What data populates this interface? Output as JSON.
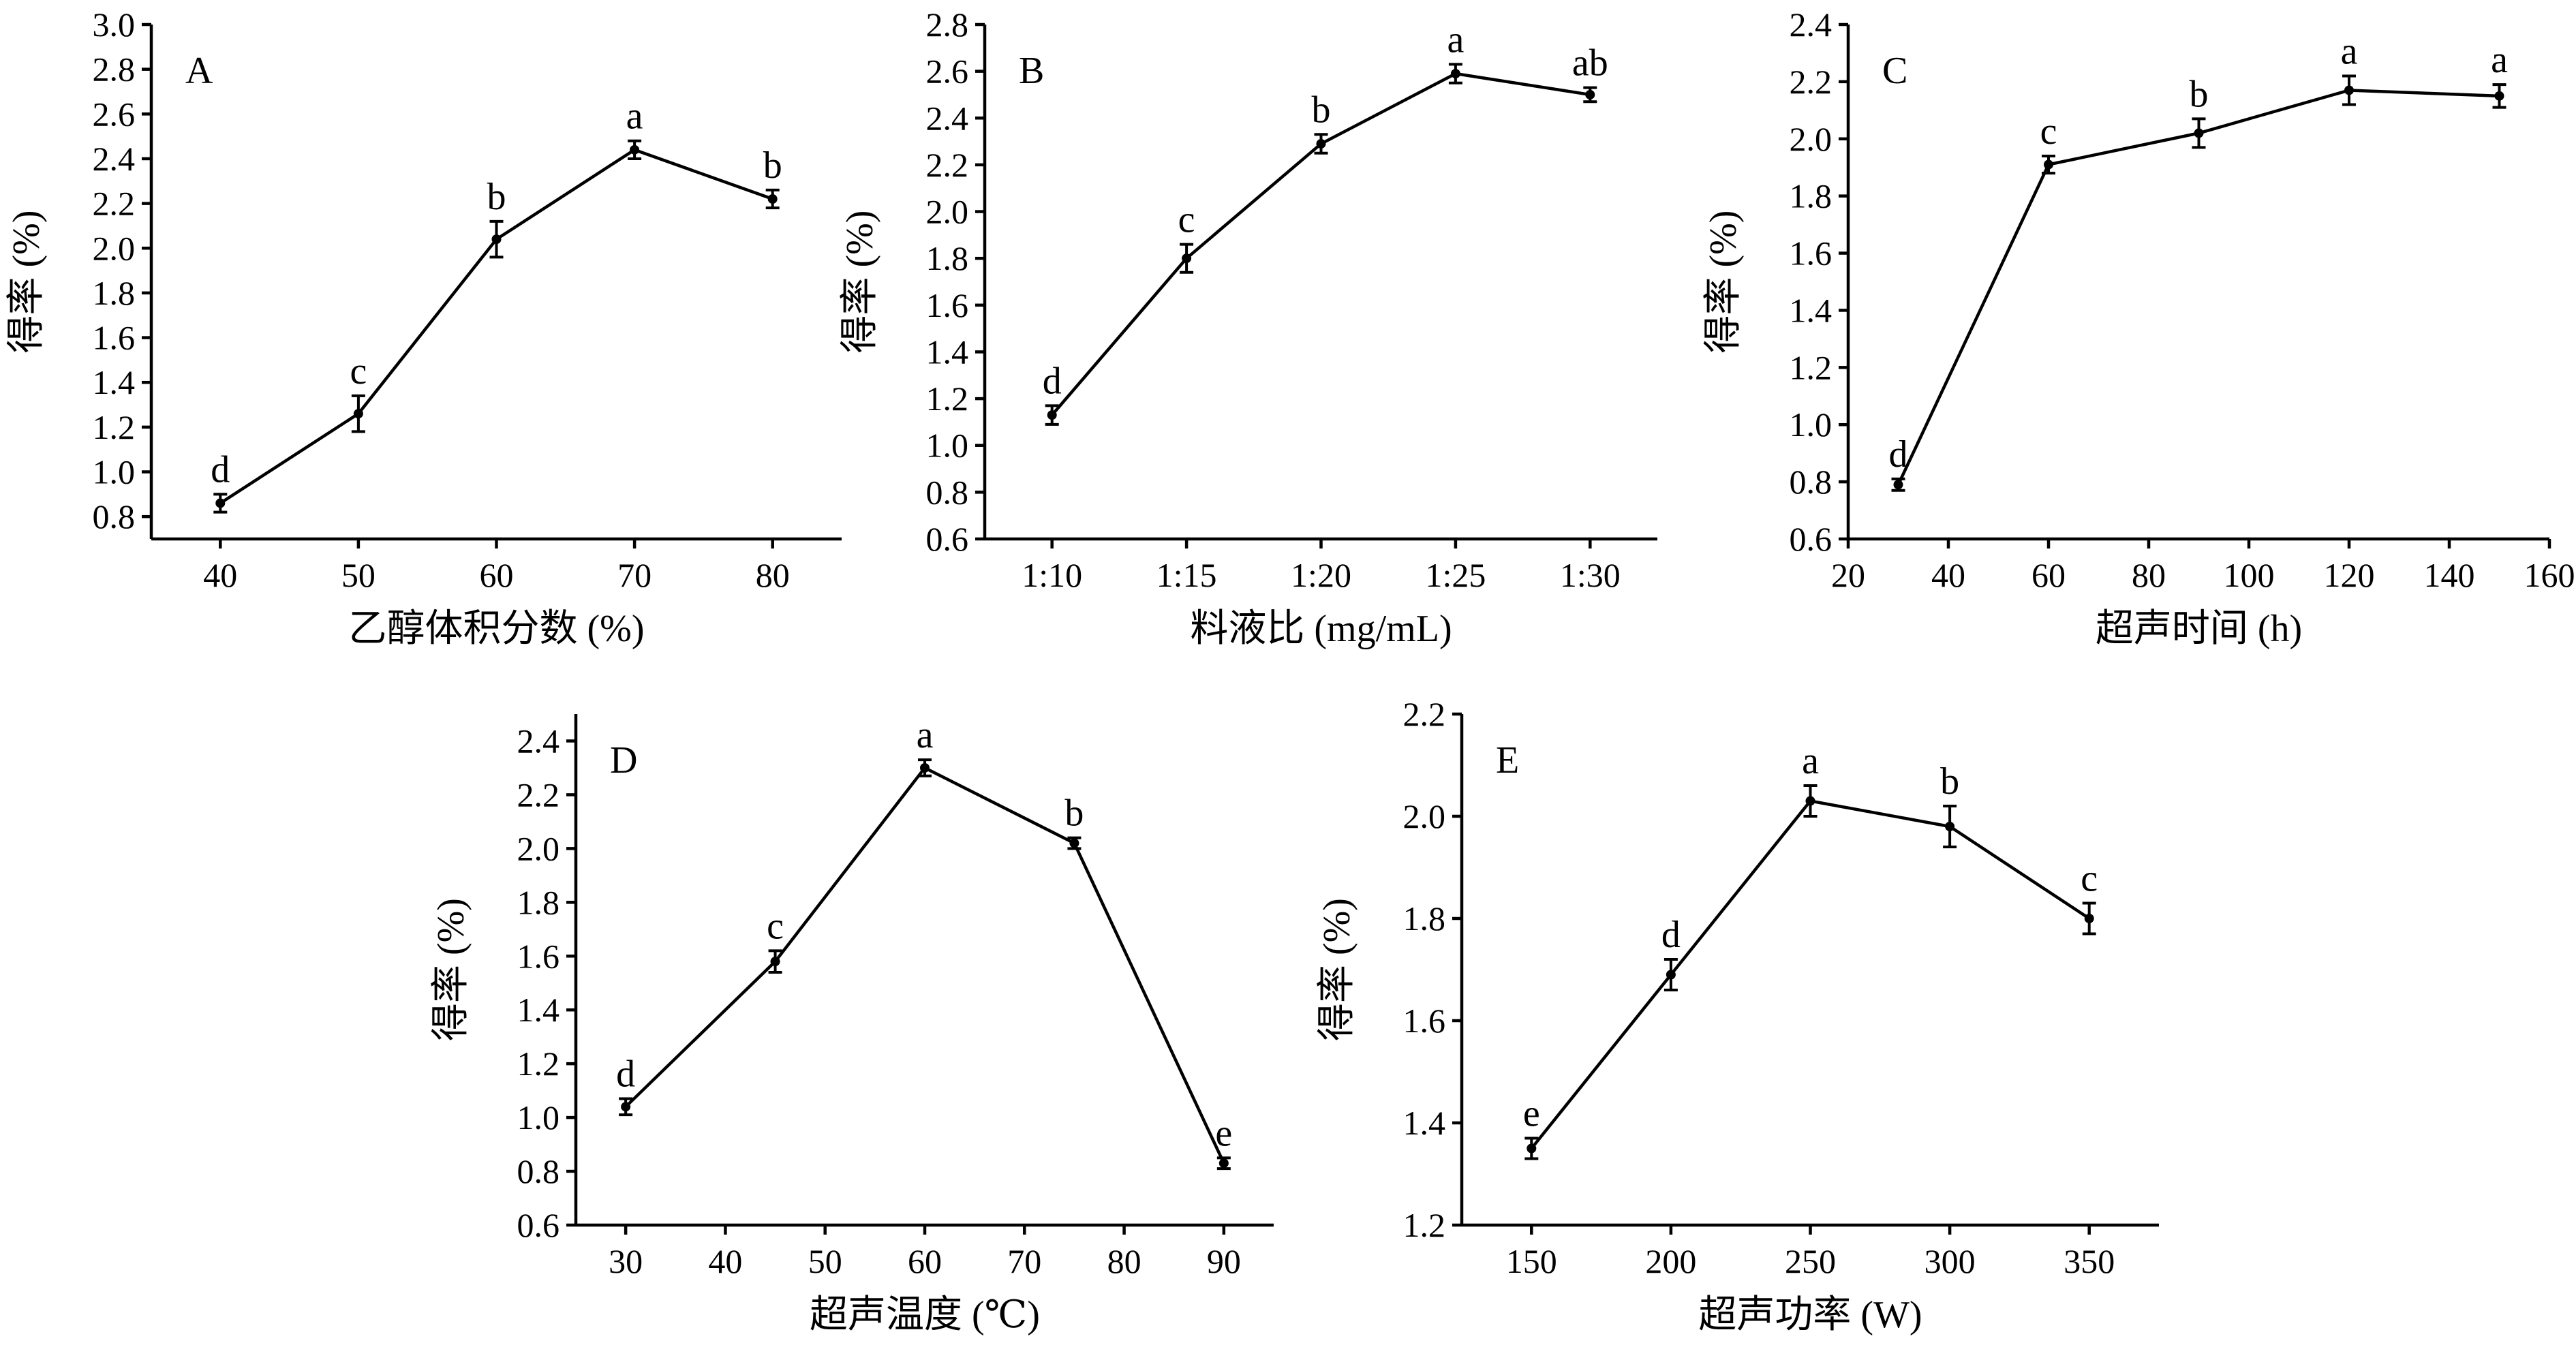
{
  "chart_data": [
    {
      "type": "line",
      "panel_label": "A",
      "xlabel": "乙醇体积分数 (%)",
      "ylabel": "得率 (%)",
      "x": [
        40,
        50,
        60,
        70,
        80
      ],
      "x_tick_labels": [
        "40",
        "50",
        "60",
        "70",
        "80"
      ],
      "xlim": [
        35,
        85
      ],
      "y_ticks": [
        "0.8",
        "1.0",
        "1.2",
        "1.4",
        "1.6",
        "1.8",
        "2.0",
        "2.2",
        "2.4",
        "2.6",
        "2.8",
        "3.0"
      ],
      "ylim": [
        0.7,
        3.0
      ],
      "values": [
        0.86,
        1.26,
        2.04,
        2.44,
        2.22
      ],
      "errors": [
        0.04,
        0.08,
        0.08,
        0.04,
        0.04
      ],
      "sig_letters": [
        "d",
        "c",
        "b",
        "a",
        "b"
      ]
    },
    {
      "type": "line",
      "panel_label": "B",
      "xlabel": "料液比 (mg/mL)",
      "ylabel": "得率 (%)",
      "x": [
        1,
        2,
        3,
        4,
        5
      ],
      "x_tick_labels": [
        "1:10",
        "1:15",
        "1:20",
        "1:25",
        "1:30"
      ],
      "xlim": [
        0.5,
        5.5
      ],
      "y_ticks": [
        "0.6",
        "0.8",
        "1.0",
        "1.2",
        "1.4",
        "1.6",
        "1.8",
        "2.0",
        "2.2",
        "2.4",
        "2.6",
        "2.8"
      ],
      "ylim": [
        0.6,
        2.8
      ],
      "values": [
        1.13,
        1.8,
        2.29,
        2.59,
        2.5
      ],
      "errors": [
        0.04,
        0.06,
        0.04,
        0.04,
        0.03
      ],
      "sig_letters": [
        "d",
        "c",
        "b",
        "a",
        "ab"
      ]
    },
    {
      "type": "line",
      "panel_label": "C",
      "xlabel": "超声时间 (h)",
      "ylabel": "得率 (%)",
      "x": [
        30,
        60,
        90,
        120,
        150
      ],
      "x_tick_labels": [
        "20",
        "40",
        "60",
        "80",
        "100",
        "120",
        "140",
        "160"
      ],
      "x_tick_values": [
        20,
        40,
        60,
        80,
        100,
        120,
        140,
        160
      ],
      "xlim": [
        20,
        160
      ],
      "y_ticks": [
        "0.6",
        "0.8",
        "1.0",
        "1.2",
        "1.4",
        "1.6",
        "1.8",
        "2.0",
        "2.2",
        "2.4"
      ],
      "ylim": [
        0.6,
        2.4
      ],
      "values": [
        0.79,
        1.91,
        2.02,
        2.17,
        2.15
      ],
      "errors": [
        0.02,
        0.03,
        0.05,
        0.05,
        0.04
      ],
      "sig_letters": [
        "d",
        "c",
        "b",
        "a",
        "a"
      ]
    },
    {
      "type": "line",
      "panel_label": "D",
      "xlabel": "超声温度 (℃)",
      "ylabel": "得率 (%)",
      "x": [
        30,
        45,
        60,
        75,
        90
      ],
      "x_tick_labels": [
        "30",
        "40",
        "50",
        "60",
        "70",
        "80",
        "90"
      ],
      "x_tick_values": [
        30,
        40,
        50,
        60,
        70,
        80,
        90
      ],
      "xlim": [
        25,
        95
      ],
      "y_ticks": [
        "0.6",
        "0.8",
        "1.0",
        "1.2",
        "1.4",
        "1.6",
        "1.8",
        "2.0",
        "2.2",
        "2.4"
      ],
      "ylim": [
        0.6,
        2.5
      ],
      "values": [
        1.04,
        1.58,
        2.3,
        2.02,
        0.83
      ],
      "errors": [
        0.03,
        0.04,
        0.03,
        0.02,
        0.02
      ],
      "sig_letters": [
        "d",
        "c",
        "a",
        "b",
        "e"
      ]
    },
    {
      "type": "line",
      "panel_label": "E",
      "xlabel": "超声功率 (W)",
      "ylabel": "得率 (%)",
      "x": [
        150,
        200,
        250,
        300,
        350
      ],
      "x_tick_labels": [
        "150",
        "200",
        "250",
        "300",
        "350"
      ],
      "x_tick_values": [
        150,
        200,
        250,
        300,
        350
      ],
      "xlim": [
        125,
        375
      ],
      "y_ticks": [
        "1.2",
        "1.4",
        "1.6",
        "1.8",
        "2.0",
        "2.2"
      ],
      "ylim": [
        1.2,
        2.2
      ],
      "values": [
        1.35,
        1.69,
        2.03,
        1.98,
        1.8
      ],
      "errors": [
        0.02,
        0.03,
        0.03,
        0.04,
        0.03
      ],
      "sig_letters": [
        "e",
        "d",
        "a",
        "b",
        "c"
      ]
    }
  ]
}
